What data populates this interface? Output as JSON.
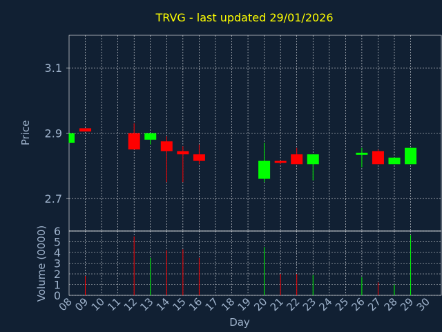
{
  "chart_data": [
    {
      "type": "candlestick",
      "title": "TRVG - last updated 29/01/2026",
      "ylabel": "Price",
      "ylim": [
        2.6,
        3.2
      ],
      "yticks": [
        "2.7",
        "2.9",
        "3.1"
      ],
      "grid": true,
      "colors": {
        "up": "#00ff00",
        "down": "#ff0000",
        "title": "#ffff00",
        "grid": "#ffffff",
        "axis_text": "#9fb3cc",
        "background": "#112033"
      },
      "days": [
        "08",
        "09",
        "10",
        "11",
        "12",
        "13",
        "14",
        "15",
        "16",
        "17",
        "18",
        "19",
        "20",
        "21",
        "22",
        "23",
        "24",
        "25",
        "26",
        "27",
        "28",
        "29",
        "30"
      ],
      "candles": [
        {
          "day": "08",
          "open": 2.87,
          "close": 2.9,
          "high": 2.9,
          "low": 2.87
        },
        {
          "day": "09",
          "open": 2.915,
          "close": 2.905,
          "high": 2.915,
          "low": 2.905
        },
        {
          "day": "12",
          "open": 2.9,
          "close": 2.85,
          "high": 2.93,
          "low": 2.85
        },
        {
          "day": "13",
          "open": 2.88,
          "close": 2.9,
          "high": 2.9,
          "low": 2.865
        },
        {
          "day": "14",
          "open": 2.875,
          "close": 2.845,
          "high": 2.89,
          "low": 2.75
        },
        {
          "day": "15",
          "open": 2.845,
          "close": 2.835,
          "high": 2.86,
          "low": 2.75
        },
        {
          "day": "16",
          "open": 2.835,
          "close": 2.815,
          "high": 2.865,
          "low": 2.805
        },
        {
          "day": "20",
          "open": 2.76,
          "close": 2.815,
          "high": 2.87,
          "low": 2.75
        },
        {
          "day": "21",
          "open": 2.815,
          "close": 2.81,
          "high": 2.815,
          "low": 2.805
        },
        {
          "day": "22",
          "open": 2.835,
          "close": 2.805,
          "high": 2.855,
          "low": 2.805
        },
        {
          "day": "23",
          "open": 2.805,
          "close": 2.835,
          "high": 2.835,
          "low": 2.755
        },
        {
          "day": "26",
          "open": 2.835,
          "close": 2.84,
          "high": 2.855,
          "low": 2.795
        },
        {
          "day": "27",
          "open": 2.845,
          "close": 2.805,
          "high": 2.85,
          "low": 2.805
        },
        {
          "day": "28",
          "open": 2.805,
          "close": 2.825,
          "high": 2.825,
          "low": 2.805
        },
        {
          "day": "29",
          "open": 2.805,
          "close": 2.855,
          "high": 2.855,
          "low": 2.805
        }
      ]
    },
    {
      "type": "bar",
      "ylabel": "Volume (0000)",
      "xlabel": "Day",
      "ylim": [
        0,
        6
      ],
      "yticks": [
        "0",
        "1",
        "2",
        "3",
        "4",
        "5",
        "6"
      ],
      "grid": true,
      "volumes": [
        {
          "day": "09",
          "value": 1.8,
          "direction": "down"
        },
        {
          "day": "12",
          "value": 5.5,
          "direction": "down"
        },
        {
          "day": "13",
          "value": 3.5,
          "direction": "up"
        },
        {
          "day": "14",
          "value": 4.2,
          "direction": "down"
        },
        {
          "day": "15",
          "value": 4.3,
          "direction": "down"
        },
        {
          "day": "16",
          "value": 3.5,
          "direction": "down"
        },
        {
          "day": "20",
          "value": 4.5,
          "direction": "up"
        },
        {
          "day": "21",
          "value": 2.0,
          "direction": "down"
        },
        {
          "day": "22",
          "value": 2.0,
          "direction": "down"
        },
        {
          "day": "23",
          "value": 1.9,
          "direction": "up"
        },
        {
          "day": "26",
          "value": 1.7,
          "direction": "up"
        },
        {
          "day": "27",
          "value": 1.2,
          "direction": "down"
        },
        {
          "day": "28",
          "value": 1.0,
          "direction": "up"
        },
        {
          "day": "29",
          "value": 5.6,
          "direction": "up"
        }
      ]
    }
  ]
}
